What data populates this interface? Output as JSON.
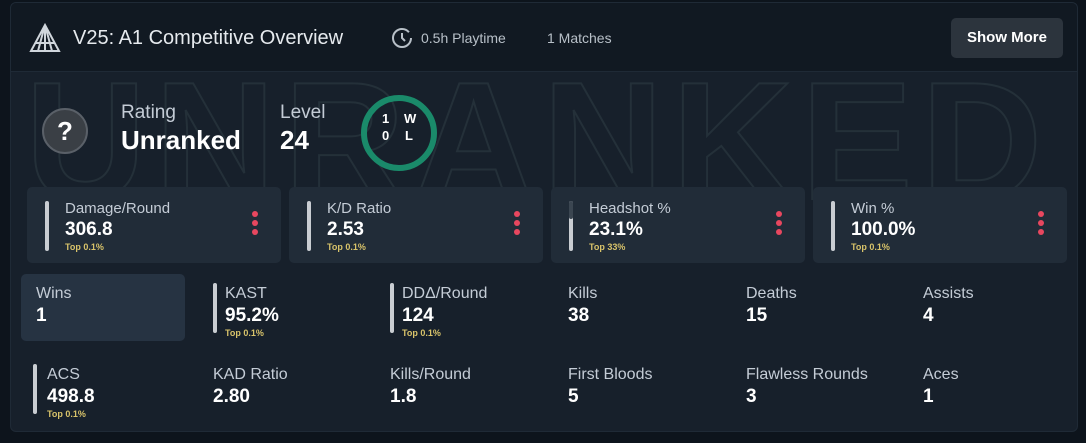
{
  "header": {
    "title": "V25: A1 Competitive Overview",
    "playtime": "0.5h Playtime",
    "matches": "1 Matches",
    "button": "Show More"
  },
  "watermark": "UNRANKED",
  "rating": {
    "label": "Rating",
    "value": "Unranked"
  },
  "level": {
    "label": "Level",
    "value": "24"
  },
  "record": {
    "wins": "1",
    "losses": "0",
    "win_letter": "W",
    "loss_letter": "L"
  },
  "cards": [
    {
      "label": "Damage/Round",
      "value": "306.8",
      "rank": "Top 0.1%"
    },
    {
      "label": "K/D Ratio",
      "value": "2.53",
      "rank": "Top 0.1%"
    },
    {
      "label": "Headshot %",
      "value": "23.1%",
      "rank": "Top 33%"
    },
    {
      "label": "Win %",
      "value": "100.0%",
      "rank": "Top 0.1%"
    }
  ],
  "stats": [
    [
      {
        "label": "Wins",
        "value": "1"
      },
      {
        "label": "KAST",
        "value": "95.2%",
        "rank": "Top 0.1%"
      },
      {
        "label": "DDΔ/Round",
        "value": "124",
        "rank": "Top 0.1%"
      },
      {
        "label": "Kills",
        "value": "38"
      },
      {
        "label": "Deaths",
        "value": "15"
      },
      {
        "label": "Assists",
        "value": "4"
      }
    ],
    [
      {
        "label": "ACS",
        "value": "498.8",
        "rank": "Top 0.1%"
      },
      {
        "label": "KAD Ratio",
        "value": "2.80"
      },
      {
        "label": "Kills/Round",
        "value": "1.8"
      },
      {
        "label": "First Bloods",
        "value": "5"
      },
      {
        "label": "Flawless Rounds",
        "value": "3"
      },
      {
        "label": "Aces",
        "value": "1"
      }
    ]
  ]
}
